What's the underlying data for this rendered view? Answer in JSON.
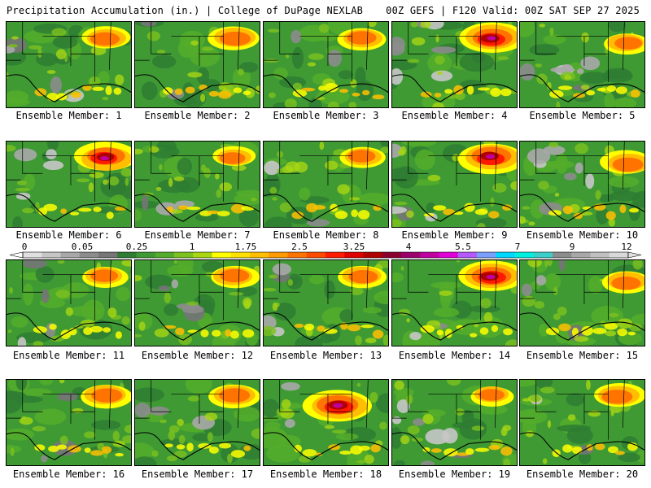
{
  "header": {
    "left": "Precipitation Accumulation (in.) | College of DuPage NEXLAB",
    "right": "00Z GEFS | F120 Valid: 00Z SAT SEP 27 2025"
  },
  "members": [
    {
      "label": "Ensemble Member: 1",
      "intensity": 0.55,
      "spot": "north",
      "light": 0.3
    },
    {
      "label": "Ensemble Member: 2",
      "intensity": 0.6,
      "spot": "north",
      "light": 0.2
    },
    {
      "label": "Ensemble Member: 3",
      "intensity": 0.55,
      "spot": "north",
      "light": 0.2
    },
    {
      "label": "Ensemble Member: 4",
      "intensity": 0.85,
      "spot": "north",
      "light": 0.55
    },
    {
      "label": "Ensemble Member: 5",
      "intensity": 0.5,
      "spot": "east",
      "light": 0.6
    },
    {
      "label": "Ensemble Member: 6",
      "intensity": 0.8,
      "spot": "north",
      "light": 0.3
    },
    {
      "label": "Ensemble Member: 7",
      "intensity": 0.45,
      "spot": "north",
      "light": 0.35
    },
    {
      "label": "Ensemble Member: 8",
      "intensity": 0.5,
      "spot": "north",
      "light": 0.2
    },
    {
      "label": "Ensemble Member: 9",
      "intensity": 0.85,
      "spot": "north",
      "light": 0.3
    },
    {
      "label": "Ensemble Member: 10",
      "intensity": 0.6,
      "spot": "east",
      "light": 0.55
    },
    {
      "label": "Ensemble Member: 11",
      "intensity": 0.5,
      "spot": "north",
      "light": 0.35
    },
    {
      "label": "Ensemble Member: 12",
      "intensity": 0.55,
      "spot": "north",
      "light": 0.4
    },
    {
      "label": "Ensemble Member: 13",
      "intensity": 0.55,
      "spot": "north",
      "light": 0.35
    },
    {
      "label": "Ensemble Member: 14",
      "intensity": 0.85,
      "spot": "north",
      "light": 0.2
    },
    {
      "label": "Ensemble Member: 15",
      "intensity": 0.55,
      "spot": "east",
      "light": 0.3
    },
    {
      "label": "Ensemble Member: 16",
      "intensity": 0.6,
      "spot": "north",
      "light": 0.25
    },
    {
      "label": "Ensemble Member: 17",
      "intensity": 0.6,
      "spot": "north",
      "light": 0.25
    },
    {
      "label": "Ensemble Member: 18",
      "intensity": 0.9,
      "spot": "center",
      "light": 0.15
    },
    {
      "label": "Ensemble Member: 19",
      "intensity": 0.45,
      "spot": "north",
      "light": 0.6
    },
    {
      "label": "Ensemble Member: 20",
      "intensity": 0.6,
      "spot": "north",
      "light": 0.2
    }
  ],
  "colorbar": {
    "labels": [
      "0",
      "0.05",
      "0.25",
      "1",
      "1.75",
      "2.5",
      "3.25",
      "4",
      "5.5",
      "7",
      "9",
      "12"
    ],
    "colors": [
      "#e0e0e0",
      "#c6c6c6",
      "#a8a8a8",
      "#8c8c8c",
      "#767676",
      "#2e7d32",
      "#3f9a34",
      "#54ad2a",
      "#7cc11f",
      "#a8d614",
      "#ffff00",
      "#ffe000",
      "#ffbf00",
      "#ff9a00",
      "#ff7400",
      "#ff4a00",
      "#ff1a00",
      "#e00000",
      "#b00000",
      "#8c0030",
      "#9c006c",
      "#c000a0",
      "#e000d8",
      "#b45aff",
      "#7aa0ff",
      "#00d8ff",
      "#00f0e0",
      "#3ad0c8",
      "#8c8c8c",
      "#a8a8a8",
      "#c0c0c0",
      "#d8d8d8"
    ]
  }
}
